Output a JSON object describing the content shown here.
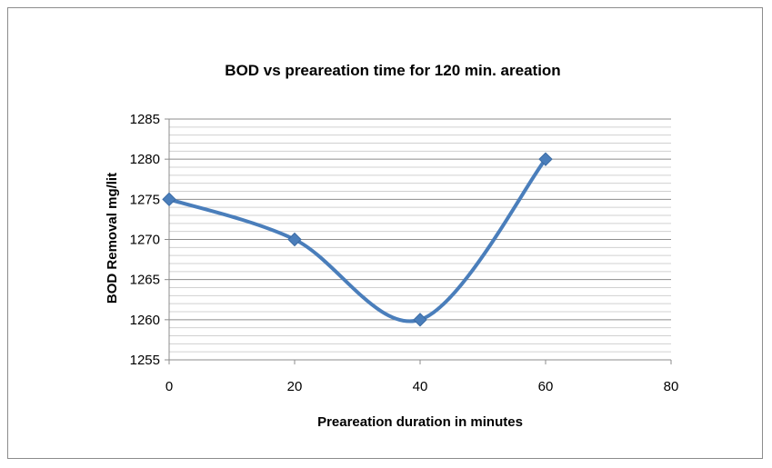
{
  "chart_data": {
    "type": "line",
    "title": "BOD vs  preareation time for 120 min. areation",
    "xlabel": "Preareation duration in minutes",
    "ylabel": "BOD Removal mg/lit",
    "xlim": [
      0,
      80
    ],
    "ylim": [
      1255,
      1285
    ],
    "x_ticks": [
      "0",
      "20",
      "40",
      "60",
      "80"
    ],
    "y_ticks": [
      "1255",
      "1260",
      "1265",
      "1270",
      "1275",
      "1280",
      "1285"
    ],
    "grid": true,
    "smooth": true,
    "legend": "none",
    "series": [
      {
        "color": "#4a7ebb",
        "x": [
          0,
          20,
          40,
          60
        ],
        "y": [
          1275,
          1270,
          1260,
          1280
        ]
      }
    ]
  }
}
